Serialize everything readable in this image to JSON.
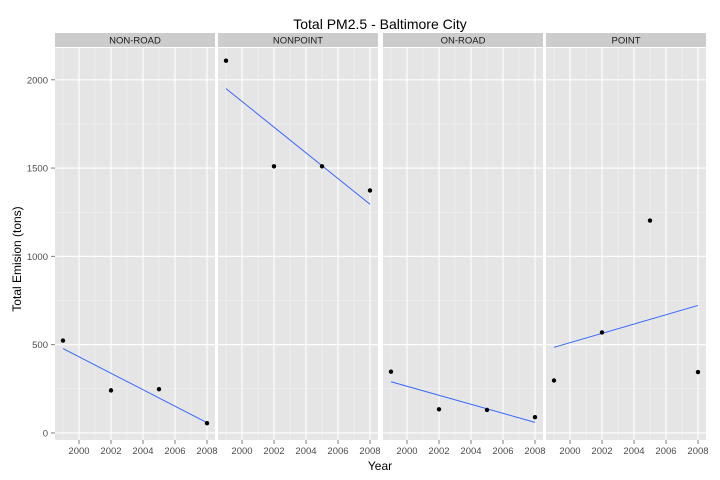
{
  "chart_data": {
    "type": "scatter",
    "title": "Total PM2.5 - Baltimore City",
    "xlabel": "Year",
    "ylabel": "Total Emision (tons)",
    "xlim": [
      1998.5,
      2008.5
    ],
    "ylim": [
      -40,
      2180
    ],
    "x_ticks": [
      2000,
      2002,
      2004,
      2006,
      2008
    ],
    "y_ticks": [
      0,
      500,
      1000,
      1500,
      2000
    ],
    "grid": true,
    "panels": [
      {
        "name": "NON-ROAD",
        "points": [
          [
            1999,
            523
          ],
          [
            2002,
            241
          ],
          [
            2005,
            248
          ],
          [
            2008,
            55
          ]
        ],
        "trend": [
          [
            1999,
            478
          ],
          [
            2008,
            58
          ]
        ]
      },
      {
        "name": "NONPOINT",
        "points": [
          [
            1999,
            2108
          ],
          [
            2002,
            1510
          ],
          [
            2005,
            1510
          ],
          [
            2008,
            1373
          ]
        ],
        "trend": [
          [
            1999,
            1950
          ],
          [
            2008,
            1295
          ]
        ]
      },
      {
        "name": "ON-ROAD",
        "points": [
          [
            1999,
            347
          ],
          [
            2002,
            134
          ],
          [
            2005,
            130
          ],
          [
            2008,
            89
          ]
        ],
        "trend": [
          [
            1999,
            290
          ],
          [
            2008,
            60
          ]
        ]
      },
      {
        "name": "POINT",
        "points": [
          [
            1999,
            297
          ],
          [
            2002,
            569
          ],
          [
            2005,
            1203
          ],
          [
            2008,
            345
          ]
        ],
        "trend": [
          [
            1999,
            485
          ],
          [
            2008,
            722
          ]
        ]
      }
    ],
    "colors": {
      "panel": "#e5e5e5",
      "strip": "#cccccc",
      "grid_major": "#ffffff",
      "grid_minor": "#f2f2f2",
      "point": "#000000",
      "trend": "#3366ff"
    }
  }
}
